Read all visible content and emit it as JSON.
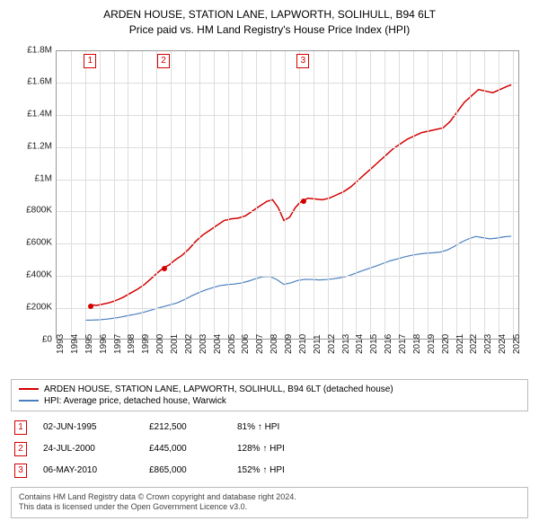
{
  "header": {
    "title": "ARDEN HOUSE, STATION LANE, LAPWORTH, SOLIHULL, B94 6LT",
    "subtitle": "Price paid vs. HM Land Registry's House Price Index (HPI)"
  },
  "chart": {
    "type": "line",
    "background_color": "#ffffff",
    "grid_color": "#dddddd",
    "axis_color": "#999999",
    "ytick_fontsize": 10,
    "xtick_fontsize": 10,
    "xtick_rotation": -90,
    "ylim": [
      0,
      1800000
    ],
    "ytick_step": 200000,
    "yticks": [
      {
        "v": 0,
        "label": "£0"
      },
      {
        "v": 200000,
        "label": "£200K"
      },
      {
        "v": 400000,
        "label": "£400K"
      },
      {
        "v": 600000,
        "label": "£600K"
      },
      {
        "v": 800000,
        "label": "£800K"
      },
      {
        "v": 1000000,
        "label": "£1M"
      },
      {
        "v": 1200000,
        "label": "£1.2M"
      },
      {
        "v": 1400000,
        "label": "£1.4M"
      },
      {
        "v": 1600000,
        "label": "£1.6M"
      },
      {
        "v": 1800000,
        "label": "£1.8M"
      }
    ],
    "xlim": [
      1993,
      2025.5
    ],
    "xticks": [
      1993,
      1994,
      1995,
      1996,
      1997,
      1998,
      1999,
      2000,
      2001,
      2002,
      2003,
      2004,
      2005,
      2006,
      2007,
      2008,
      2009,
      2010,
      2011,
      2012,
      2013,
      2014,
      2015,
      2016,
      2017,
      2018,
      2019,
      2020,
      2021,
      2022,
      2023,
      2024,
      2025
    ],
    "series": [
      {
        "name": "property",
        "label": "ARDEN HOUSE, STATION LANE, LAPWORTH, SOLIHULL, B94 6LT (detached house)",
        "color": "#d40000",
        "line_width": 1.5,
        "data": [
          [
            1995.42,
            212500
          ],
          [
            1995.8,
            208000
          ],
          [
            1996.2,
            215000
          ],
          [
            1996.7,
            225000
          ],
          [
            1997.2,
            240000
          ],
          [
            1997.7,
            260000
          ],
          [
            1998.2,
            285000
          ],
          [
            1998.7,
            310000
          ],
          [
            1999.2,
            340000
          ],
          [
            1999.7,
            380000
          ],
          [
            2000.2,
            420000
          ],
          [
            2000.56,
            445000
          ],
          [
            2000.9,
            460000
          ],
          [
            2001.3,
            490000
          ],
          [
            2001.8,
            520000
          ],
          [
            2002.3,
            560000
          ],
          [
            2002.8,
            610000
          ],
          [
            2003.3,
            650000
          ],
          [
            2003.8,
            680000
          ],
          [
            2004.3,
            710000
          ],
          [
            2004.8,
            740000
          ],
          [
            2005.3,
            750000
          ],
          [
            2005.8,
            755000
          ],
          [
            2006.3,
            770000
          ],
          [
            2006.8,
            800000
          ],
          [
            2007.3,
            830000
          ],
          [
            2007.8,
            860000
          ],
          [
            2008.2,
            870000
          ],
          [
            2008.6,
            820000
          ],
          [
            2009.0,
            740000
          ],
          [
            2009.4,
            760000
          ],
          [
            2009.8,
            820000
          ],
          [
            2010.1,
            850000
          ],
          [
            2010.35,
            865000
          ],
          [
            2010.7,
            880000
          ],
          [
            2011.2,
            875000
          ],
          [
            2011.7,
            870000
          ],
          [
            2012.2,
            880000
          ],
          [
            2012.7,
            900000
          ],
          [
            2013.2,
            920000
          ],
          [
            2013.7,
            950000
          ],
          [
            2014.2,
            990000
          ],
          [
            2014.7,
            1030000
          ],
          [
            2015.2,
            1070000
          ],
          [
            2015.7,
            1110000
          ],
          [
            2016.2,
            1150000
          ],
          [
            2016.7,
            1190000
          ],
          [
            2017.2,
            1220000
          ],
          [
            2017.7,
            1250000
          ],
          [
            2018.2,
            1270000
          ],
          [
            2018.7,
            1290000
          ],
          [
            2019.2,
            1300000
          ],
          [
            2019.7,
            1310000
          ],
          [
            2020.2,
            1320000
          ],
          [
            2020.7,
            1360000
          ],
          [
            2021.2,
            1420000
          ],
          [
            2021.7,
            1480000
          ],
          [
            2022.2,
            1520000
          ],
          [
            2022.7,
            1560000
          ],
          [
            2023.2,
            1550000
          ],
          [
            2023.7,
            1540000
          ],
          [
            2024.2,
            1560000
          ],
          [
            2024.7,
            1580000
          ],
          [
            2025.0,
            1590000
          ]
        ]
      },
      {
        "name": "hpi",
        "label": "HPI: Average price, detached house, Warwick",
        "color": "#4a7fbf",
        "line_width": 1.2,
        "data": [
          [
            1995.0,
            115000
          ],
          [
            1995.5,
            116000
          ],
          [
            1996.0,
            118000
          ],
          [
            1996.5,
            122000
          ],
          [
            1997.0,
            128000
          ],
          [
            1997.5,
            135000
          ],
          [
            1998.0,
            144000
          ],
          [
            1998.5,
            152000
          ],
          [
            1999.0,
            162000
          ],
          [
            1999.5,
            175000
          ],
          [
            2000.0,
            188000
          ],
          [
            2000.5,
            200000
          ],
          [
            2001.0,
            212000
          ],
          [
            2001.5,
            225000
          ],
          [
            2002.0,
            245000
          ],
          [
            2002.5,
            268000
          ],
          [
            2003.0,
            288000
          ],
          [
            2003.5,
            305000
          ],
          [
            2004.0,
            320000
          ],
          [
            2004.5,
            332000
          ],
          [
            2005.0,
            338000
          ],
          [
            2005.5,
            342000
          ],
          [
            2006.0,
            348000
          ],
          [
            2006.5,
            360000
          ],
          [
            2007.0,
            375000
          ],
          [
            2007.5,
            388000
          ],
          [
            2008.0,
            390000
          ],
          [
            2008.5,
            370000
          ],
          [
            2009.0,
            340000
          ],
          [
            2009.5,
            350000
          ],
          [
            2010.0,
            365000
          ],
          [
            2010.5,
            372000
          ],
          [
            2011.0,
            370000
          ],
          [
            2011.5,
            368000
          ],
          [
            2012.0,
            370000
          ],
          [
            2012.5,
            375000
          ],
          [
            2013.0,
            382000
          ],
          [
            2013.5,
            392000
          ],
          [
            2014.0,
            408000
          ],
          [
            2014.5,
            425000
          ],
          [
            2015.0,
            440000
          ],
          [
            2015.5,
            455000
          ],
          [
            2016.0,
            472000
          ],
          [
            2016.5,
            488000
          ],
          [
            2017.0,
            500000
          ],
          [
            2017.5,
            512000
          ],
          [
            2018.0,
            522000
          ],
          [
            2018.5,
            530000
          ],
          [
            2019.0,
            535000
          ],
          [
            2019.5,
            538000
          ],
          [
            2020.0,
            542000
          ],
          [
            2020.5,
            555000
          ],
          [
            2021.0,
            578000
          ],
          [
            2021.5,
            605000
          ],
          [
            2022.0,
            625000
          ],
          [
            2022.5,
            640000
          ],
          [
            2023.0,
            632000
          ],
          [
            2023.5,
            625000
          ],
          [
            2024.0,
            630000
          ],
          [
            2024.5,
            638000
          ],
          [
            2025.0,
            642000
          ]
        ]
      }
    ],
    "markers": [
      {
        "n": "1",
        "x": 1995.42,
        "y": 212500
      },
      {
        "n": "2",
        "x": 2000.56,
        "y": 445000
      },
      {
        "n": "3",
        "x": 2010.35,
        "y": 865000
      }
    ],
    "marker_border_color": "#d40000",
    "marker_text_color": "#d40000"
  },
  "legend": {
    "border_color": "#bbbbbb",
    "fontsize": 10,
    "items": [
      {
        "color": "#d40000",
        "label": "ARDEN HOUSE, STATION LANE, LAPWORTH, SOLIHULL, B94 6LT (detached house)"
      },
      {
        "color": "#4a7fbf",
        "label": "HPI: Average price, detached house, Warwick"
      }
    ]
  },
  "sales": [
    {
      "n": "1",
      "date": "02-JUN-1995",
      "price": "£212,500",
      "pct": "81% ↑ HPI"
    },
    {
      "n": "2",
      "date": "24-JUL-2000",
      "price": "£445,000",
      "pct": "128% ↑ HPI"
    },
    {
      "n": "3",
      "date": "06-MAY-2010",
      "price": "£865,000",
      "pct": "152% ↑ HPI"
    }
  ],
  "attribution": {
    "line1": "Contains HM Land Registry data © Crown copyright and database right 2024.",
    "line2": "This data is licensed under the Open Government Licence v3.0."
  }
}
